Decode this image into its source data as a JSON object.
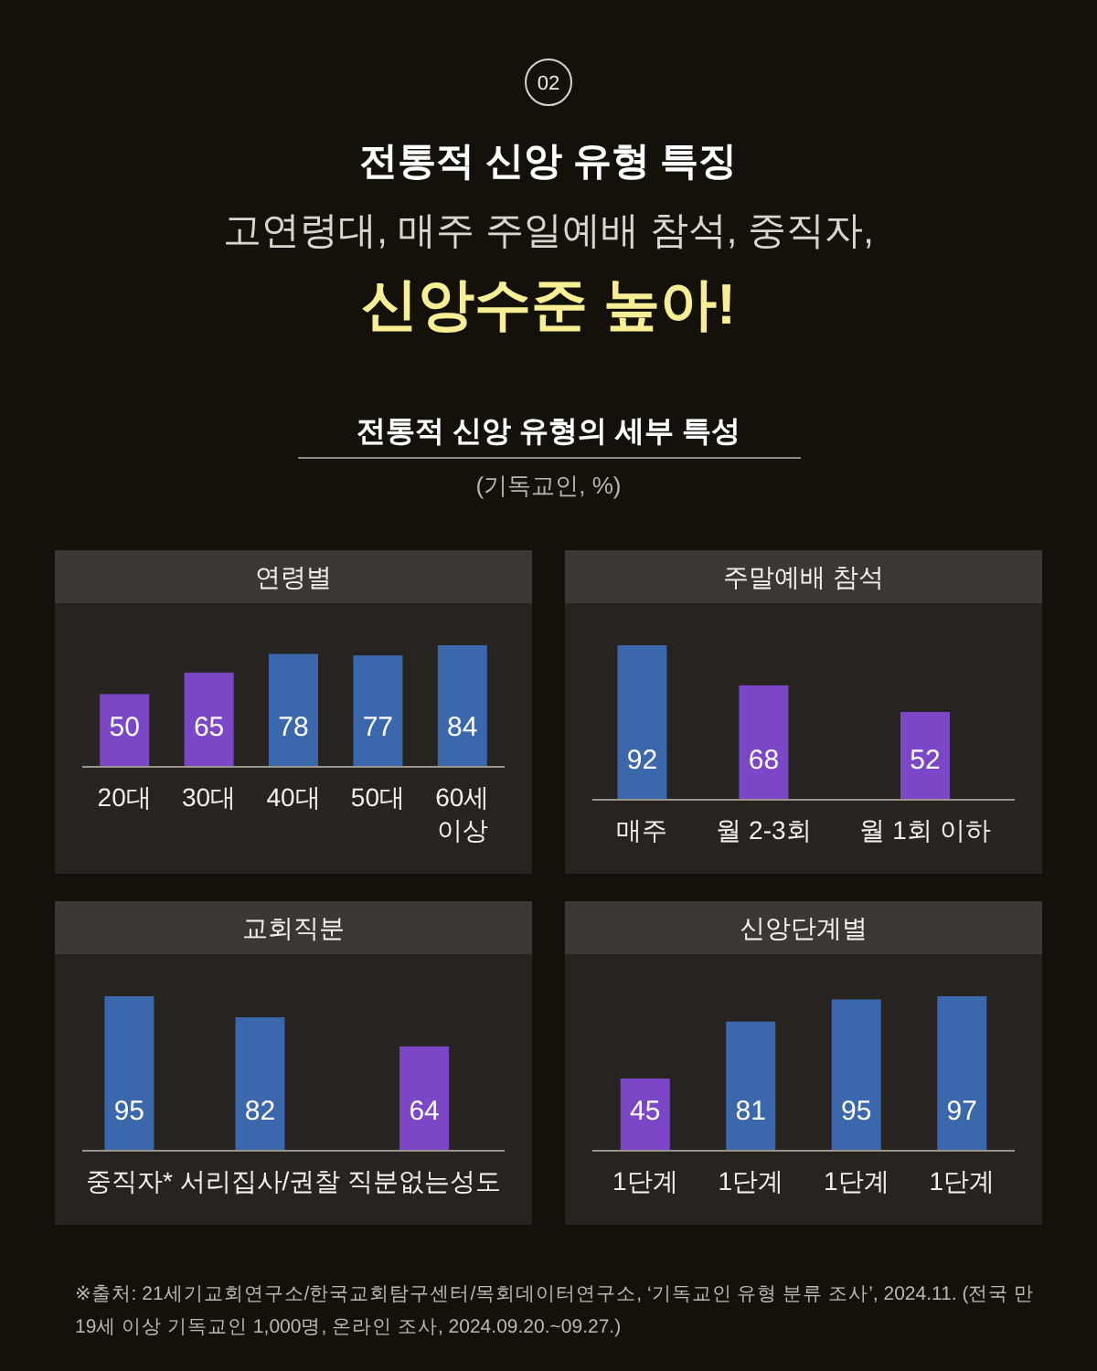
{
  "chart_data": [
    {
      "type": "other",
      "title": "전통적 신앙 유형 특징",
      "subtitle": "고연령대, 매주 주일예배 참석, 중직자,",
      "annotations": [
        "02",
        "신앙수준 높아!",
        "전통적 신앙 유형의 세부 특성",
        "(기독교인, %)"
      ]
    },
    {
      "type": "bar",
      "title": "연령별",
      "categories": [
        "20대",
        "30대",
        "40대",
        "50대",
        "60세 이상"
      ],
      "values": [
        50,
        65,
        78,
        77,
        84
      ],
      "colors": [
        "#7b47c6",
        "#7b47c6",
        "#3b68ad",
        "#3b68ad",
        "#3b68ad"
      ],
      "data_labels": true
    },
    {
      "type": "bar",
      "title": "주말예배 참석",
      "categories": [
        "매주",
        "월 2-3회",
        "월 1회 이하"
      ],
      "values": [
        92,
        68,
        52
      ],
      "colors": [
        "#3b68ad",
        "#7b47c6",
        "#7b47c6"
      ],
      "data_labels": true
    },
    {
      "type": "bar",
      "title": "교회직분",
      "categories": [
        "중직자*",
        "서리집사/권찰",
        "직분없는성도"
      ],
      "values": [
        95,
        82,
        64
      ],
      "colors": [
        "#3b68ad",
        "#3b68ad",
        "#7b47c6"
      ],
      "data_labels": true
    },
    {
      "type": "bar",
      "title": "신앙단계별",
      "categories": [
        "1단계",
        "1단계",
        "1단계",
        "1단계"
      ],
      "values": [
        45,
        81,
        95,
        97
      ],
      "colors": [
        "#7b47c6",
        "#3b68ad",
        "#3b68ad",
        "#3b68ad"
      ],
      "data_labels": true
    },
    {
      "type": "other",
      "annotations": [
        "※출처: 21세기교회연구소/한국교회탐구센터/목회데이터연구소, ‘기독교인 유형 분류 조사’, 2024.11. (전국 만 19세 이상 기독교인 1,000명, 온라인 조사, 2024.09.20.~09.27.)"
      ]
    }
  ]
}
